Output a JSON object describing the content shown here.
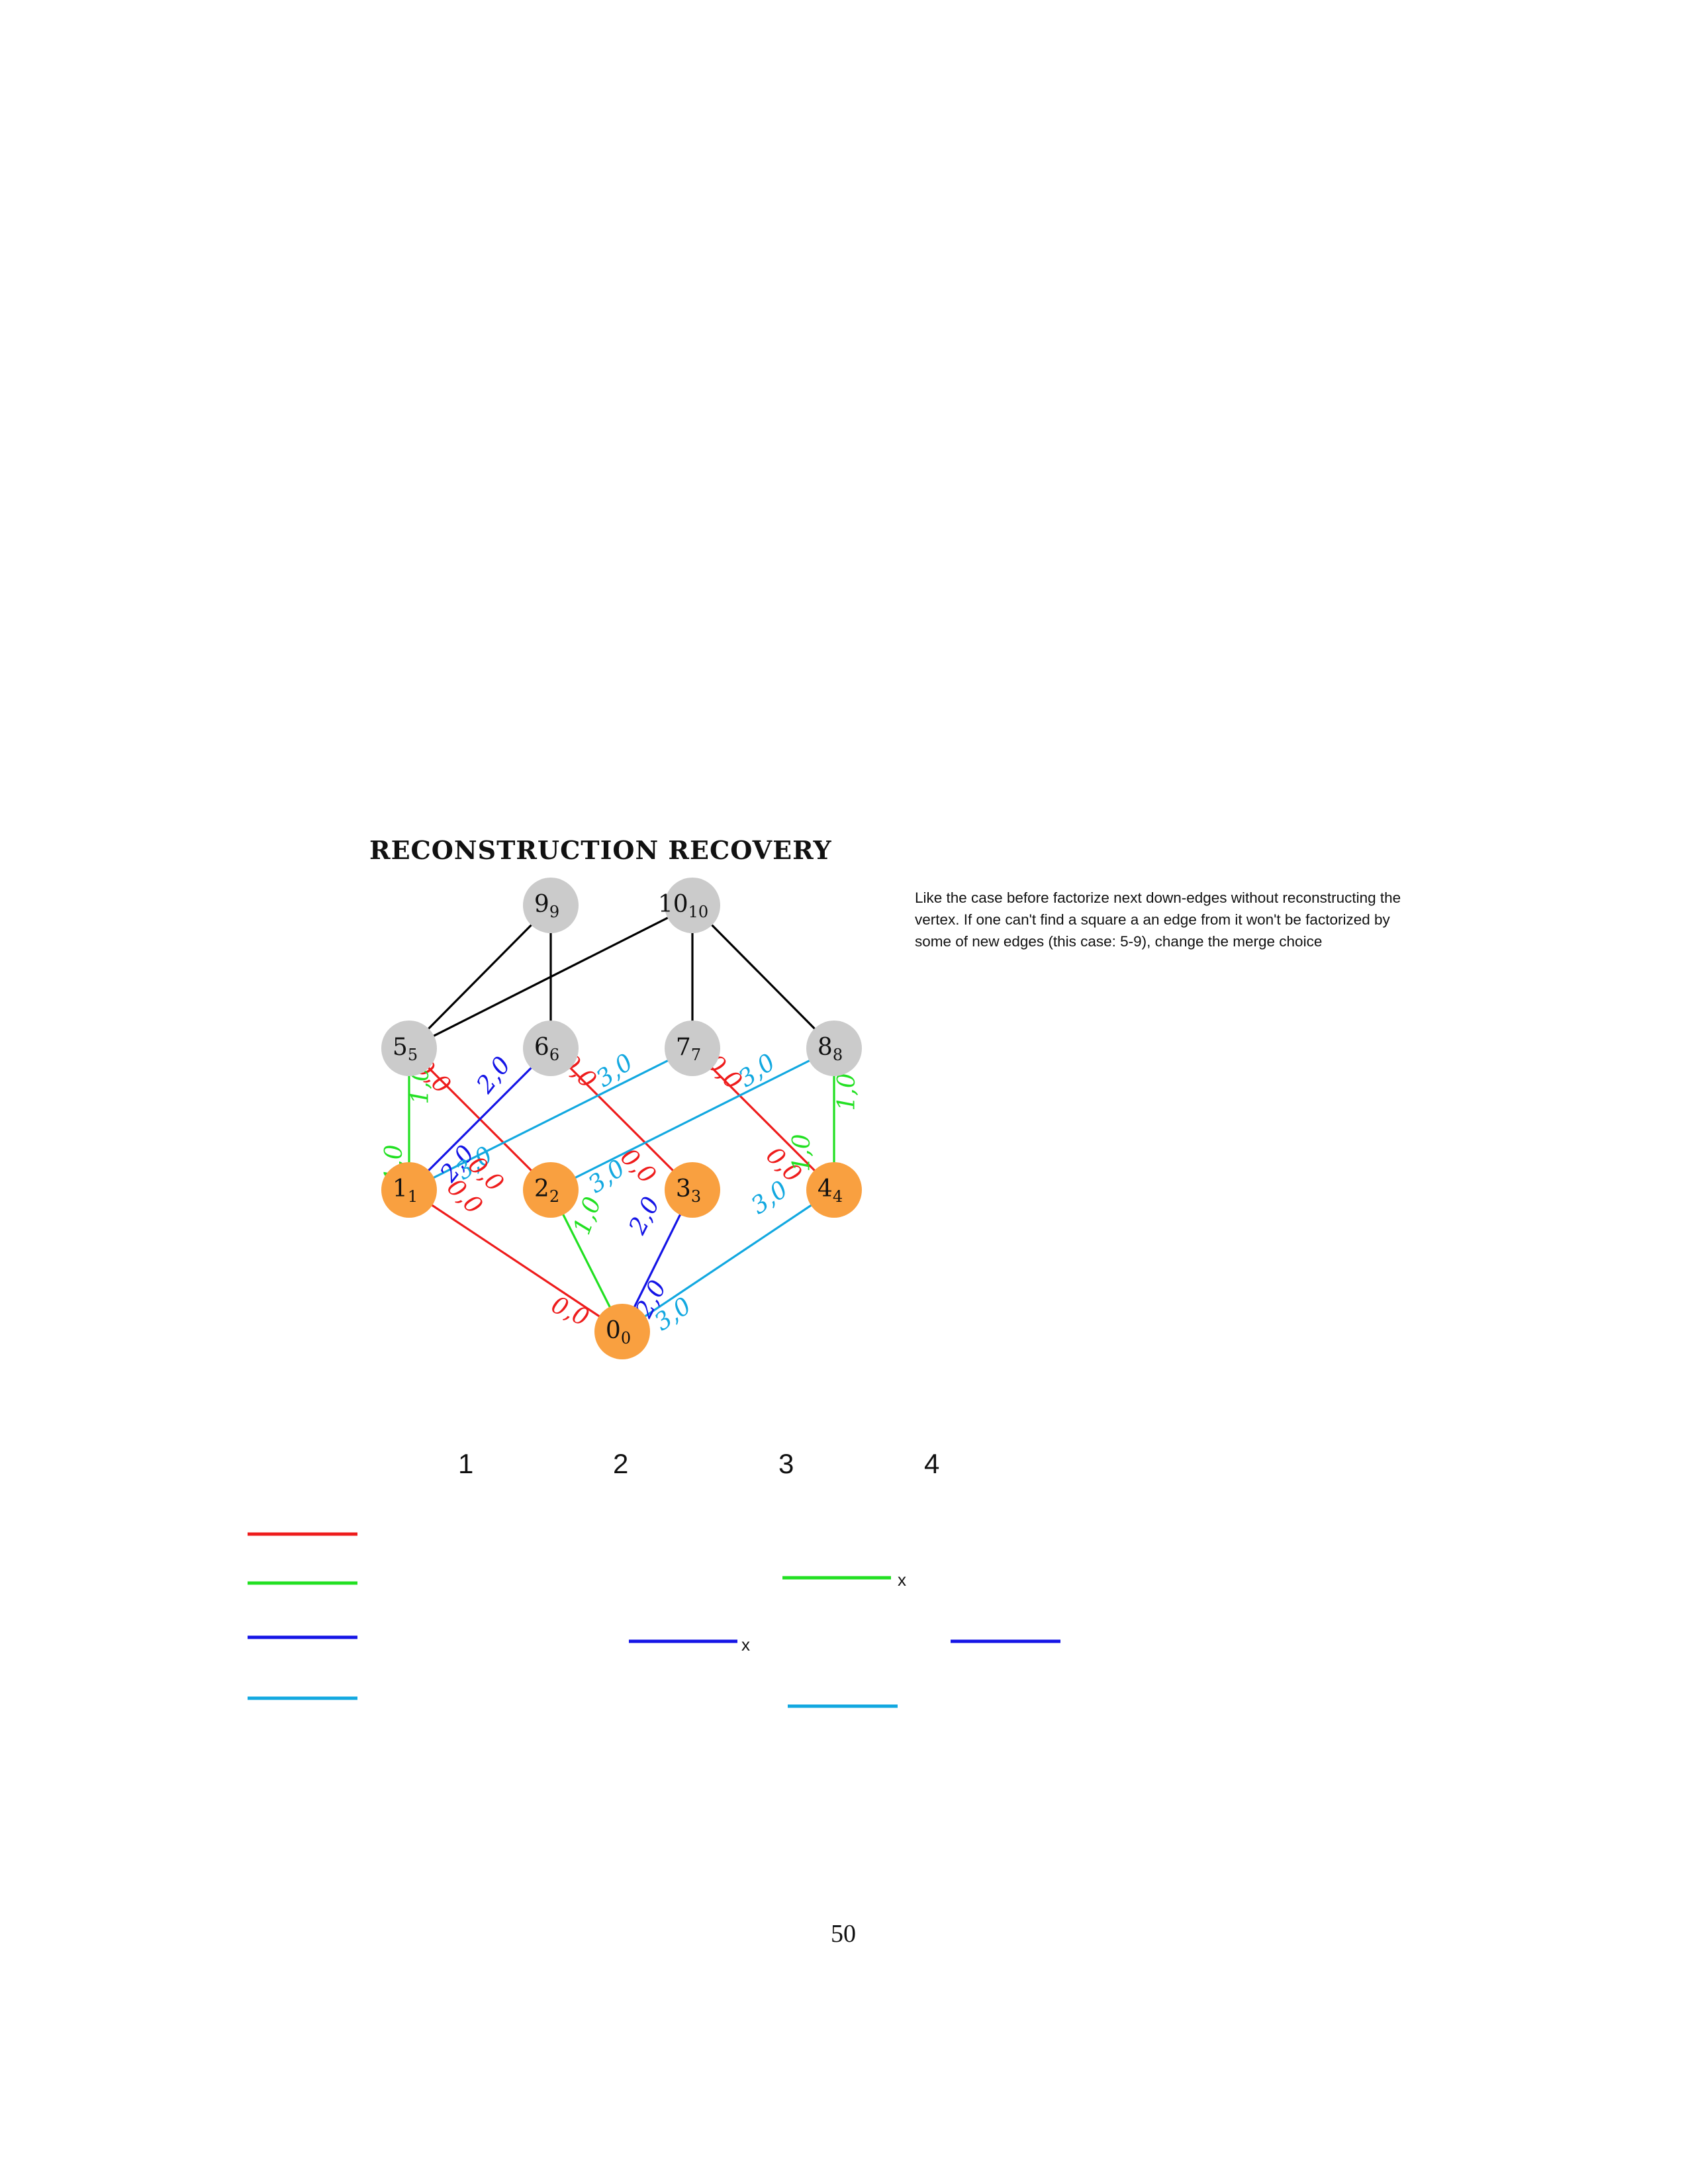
{
  "title": "RECONSTRUCTION RECOVERY",
  "note": "Like the case before factorize next down-edges without reconstructing the vertex. If one can't find a square a an edge from it won't be factorized by some of new edges (this case: 5-9), change the merge choice",
  "colors": {
    "red": "#ee1c1c",
    "green": "#22e022",
    "blue": "#1414e6",
    "cyan": "#12a8e0",
    "black": "#000000",
    "gray_node": "#cbcbcb",
    "orange_node": "#f9a040"
  },
  "nodes": [
    {
      "id": "9",
      "main": "9",
      "sub": "9",
      "fill": "gray"
    },
    {
      "id": "10",
      "main": "10",
      "sub": "10",
      "fill": "gray"
    },
    {
      "id": "5",
      "main": "5",
      "sub": "5",
      "fill": "gray"
    },
    {
      "id": "6",
      "main": "6",
      "sub": "6",
      "fill": "gray"
    },
    {
      "id": "7",
      "main": "7",
      "sub": "7",
      "fill": "gray"
    },
    {
      "id": "8",
      "main": "8",
      "sub": "8",
      "fill": "gray"
    },
    {
      "id": "1",
      "main": "1",
      "sub": "1",
      "fill": "orange"
    },
    {
      "id": "2",
      "main": "2",
      "sub": "2",
      "fill": "orange"
    },
    {
      "id": "3",
      "main": "3",
      "sub": "3",
      "fill": "orange"
    },
    {
      "id": "4",
      "main": "4",
      "sub": "4",
      "fill": "orange"
    },
    {
      "id": "0",
      "main": "0",
      "sub": "0",
      "fill": "orange"
    }
  ],
  "edges": [
    {
      "from": "9",
      "to": "5",
      "color": "black"
    },
    {
      "from": "9",
      "to": "6",
      "color": "black"
    },
    {
      "from": "10",
      "to": "5",
      "color": "black"
    },
    {
      "from": "10",
      "to": "7",
      "color": "black"
    },
    {
      "from": "10",
      "to": "8",
      "color": "black"
    },
    {
      "from": "5",
      "to": "1",
      "color": "green"
    },
    {
      "from": "5",
      "to": "2",
      "color": "red"
    },
    {
      "from": "6",
      "to": "1",
      "color": "blue"
    },
    {
      "from": "6",
      "to": "3",
      "color": "red"
    },
    {
      "from": "7",
      "to": "1",
      "color": "cyan"
    },
    {
      "from": "7",
      "to": "4",
      "color": "red"
    },
    {
      "from": "8",
      "to": "2",
      "color": "cyan"
    },
    {
      "from": "8",
      "to": "4",
      "color": "green"
    },
    {
      "from": "1",
      "to": "0",
      "color": "red"
    },
    {
      "from": "2",
      "to": "0",
      "color": "green"
    },
    {
      "from": "3",
      "to": "0",
      "color": "blue"
    },
    {
      "from": "4",
      "to": "0",
      "color": "cyan"
    }
  ],
  "edge_labels": [
    {
      "text": "1,0",
      "color": "green"
    },
    {
      "text": "0,0",
      "color": "red"
    },
    {
      "text": "2,0",
      "color": "blue"
    },
    {
      "text": "0,0",
      "color": "red"
    },
    {
      "text": "3,0",
      "color": "cyan"
    },
    {
      "text": "0,0",
      "color": "red"
    },
    {
      "text": "3,0",
      "color": "cyan"
    },
    {
      "text": "1,0",
      "color": "green"
    },
    {
      "text": "1,0",
      "color": "green"
    },
    {
      "text": "2,0",
      "color": "blue"
    },
    {
      "text": "3,0",
      "color": "cyan"
    },
    {
      "text": "0,0",
      "color": "red"
    },
    {
      "text": "0,0",
      "color": "red"
    },
    {
      "text": "3,0",
      "color": "cyan"
    },
    {
      "text": "0,0",
      "color": "red"
    },
    {
      "text": "0,0",
      "color": "red"
    },
    {
      "text": "1,0",
      "color": "green"
    },
    {
      "text": "2,0",
      "color": "blue"
    },
    {
      "text": "3,0",
      "color": "cyan"
    },
    {
      "text": "0,0",
      "color": "red"
    },
    {
      "text": "1,0",
      "color": "green"
    },
    {
      "text": "2,0",
      "color": "blue"
    },
    {
      "text": "3,0",
      "color": "cyan"
    }
  ],
  "columns": [
    "1",
    "2",
    "3",
    "4"
  ],
  "legend_rows": [
    {
      "color": "red"
    },
    {
      "color": "green"
    },
    {
      "color": "blue"
    },
    {
      "color": "cyan"
    }
  ],
  "grid_marks": [
    {
      "column": "3",
      "row": "green",
      "mark": "x"
    },
    {
      "column": "2",
      "row": "blue",
      "mark": "x"
    },
    {
      "column": "4",
      "row": "blue",
      "mark": ""
    },
    {
      "column": "3",
      "row": "cyan",
      "mark": ""
    }
  ],
  "page_number": "50"
}
